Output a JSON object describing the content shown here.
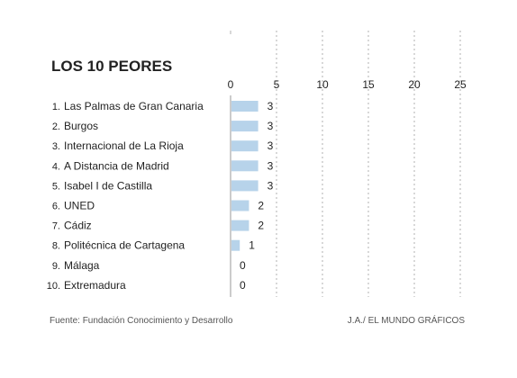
{
  "chart_data": {
    "type": "bar",
    "orientation": "horizontal",
    "title": "LOS 10 PEORES",
    "ranks": [
      "1.",
      "2.",
      "3.",
      "4.",
      "5.",
      "6.",
      "7.",
      "8.",
      "9.",
      "10."
    ],
    "categories": [
      "Las Palmas de Gran Canaria",
      "Burgos",
      "Internacional de La Rioja",
      "A Distancia de Madrid",
      "Isabel I de Castilla",
      "UNED",
      "Cádiz",
      "Politécnica de Cartagena",
      "Málaga",
      "Extremadura"
    ],
    "values": [
      3,
      3,
      3,
      3,
      3,
      2,
      2,
      1,
      0,
      0
    ],
    "xticks": [
      0,
      5,
      10,
      15,
      20,
      25
    ],
    "xlim": [
      0,
      25
    ],
    "grid": true,
    "bar_color": "#b7d3ea"
  },
  "footer": {
    "source": "Fuente: Fundación Conocimiento y Desarrollo",
    "credit": "J.A./ EL MUNDO GRÁFICOS"
  }
}
